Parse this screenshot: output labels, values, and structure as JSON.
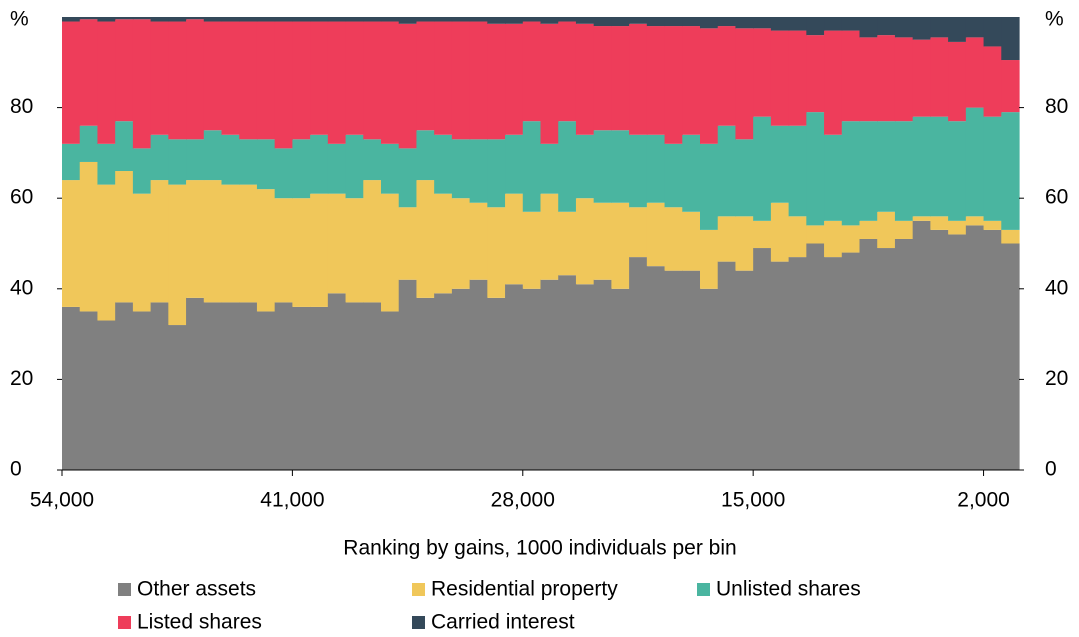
{
  "chart_data": {
    "type": "stacked-histogram",
    "xlabel": "Ranking by gains, 1000 individuals per bin",
    "ylabel": "%",
    "bins": [
      54000,
      53000,
      52000,
      51000,
      50000,
      49000,
      48000,
      47000,
      46000,
      45000,
      44000,
      43000,
      42000,
      41000,
      40000,
      39000,
      38000,
      37000,
      36000,
      35000,
      34000,
      33000,
      32000,
      31000,
      30000,
      29000,
      28000,
      27000,
      26000,
      25000,
      24000,
      23000,
      22000,
      21000,
      20000,
      19000,
      18000,
      17000,
      16000,
      15000,
      14000,
      13000,
      12000,
      11000,
      10000,
      9000,
      8000,
      7000,
      6000,
      5000,
      4000,
      3000,
      2000,
      1000,
      0
    ],
    "xlim": [
      54000,
      0
    ],
    "xticks": [
      {
        "value": 54000,
        "label": "54,000"
      },
      {
        "value": 41000,
        "label": "41,000"
      },
      {
        "value": 28000,
        "label": "28,000"
      },
      {
        "value": 15000,
        "label": "15,000"
      },
      {
        "value": 2000,
        "label": "2,000"
      }
    ],
    "ylim": [
      0,
      100
    ],
    "yticks": [
      0,
      20,
      40,
      60,
      80
    ],
    "series": [
      {
        "name": "Other assets",
        "color": "#808080",
        "values": [
          36,
          35,
          33,
          37,
          35,
          37,
          32,
          38,
          37,
          37,
          37,
          35,
          37,
          36,
          36,
          39,
          37,
          37,
          35,
          42,
          38,
          39,
          40,
          42,
          38,
          41,
          40,
          42,
          43,
          41,
          42,
          40,
          47,
          45,
          44,
          44,
          40,
          46,
          44,
          49,
          46,
          47,
          50,
          47,
          48,
          51,
          49,
          51,
          55,
          53,
          52,
          54,
          53,
          50
        ]
      },
      {
        "name": "Residential property",
        "color": "#f0c75a",
        "values": [
          28,
          33,
          30,
          29,
          26,
          27,
          31,
          26,
          27,
          26,
          26,
          27,
          23,
          24,
          25,
          22,
          23,
          27,
          26,
          16,
          26,
          22,
          20,
          17,
          20,
          20,
          17,
          19,
          14,
          19,
          17,
          19,
          11,
          14,
          14,
          13,
          13,
          10,
          12,
          6,
          13,
          9,
          4,
          8,
          6,
          4,
          8,
          4,
          1,
          3,
          3,
          2,
          2,
          3
        ]
      },
      {
        "name": "Unlisted shares",
        "color": "#4ab5a0",
        "values": [
          8,
          8,
          9,
          11,
          10,
          10,
          10,
          9,
          11,
          11,
          10,
          11,
          11,
          13,
          13,
          11,
          14,
          9,
          11,
          13,
          11,
          13,
          13,
          14,
          15,
          13,
          20,
          11,
          20,
          14,
          16,
          16,
          16,
          15,
          14,
          17,
          19,
          20,
          17,
          23,
          17,
          20,
          25,
          19,
          23,
          22,
          20,
          22,
          22,
          22,
          22,
          24,
          23,
          26
        ]
      },
      {
        "name": "Listed shares",
        "color": "#ee3d5a",
        "values": [
          27,
          23.5,
          27,
          22.5,
          28.5,
          25,
          26,
          26.5,
          24,
          25,
          26,
          26,
          28,
          26,
          25,
          27,
          25,
          26,
          27,
          27.5,
          24,
          25,
          26,
          26,
          25.5,
          24.5,
          22,
          26.5,
          22,
          24.5,
          23,
          23,
          24.5,
          24,
          26,
          24,
          25.5,
          22,
          24.5,
          19.5,
          21,
          21,
          17,
          23,
          20,
          18.5,
          19,
          18.5,
          17,
          17.5,
          17.5,
          15.5,
          15.5,
          11.5
        ]
      },
      {
        "name": "Carried interest",
        "color": "#34495a",
        "values": [
          1,
          0.5,
          1,
          0.5,
          0.5,
          1,
          1,
          0.5,
          1,
          1,
          1,
          1,
          1,
          1,
          1,
          1,
          1,
          1,
          1,
          1.5,
          1,
          1,
          1,
          1,
          1.5,
          1.5,
          1,
          1.5,
          1,
          1.5,
          2,
          2,
          1.5,
          2,
          2,
          2,
          2.5,
          2,
          2.5,
          2.5,
          3,
          3,
          4,
          3,
          3,
          4.5,
          4,
          4.5,
          5,
          4.5,
          5.5,
          4.5,
          6.5,
          9.5
        ]
      }
    ]
  }
}
